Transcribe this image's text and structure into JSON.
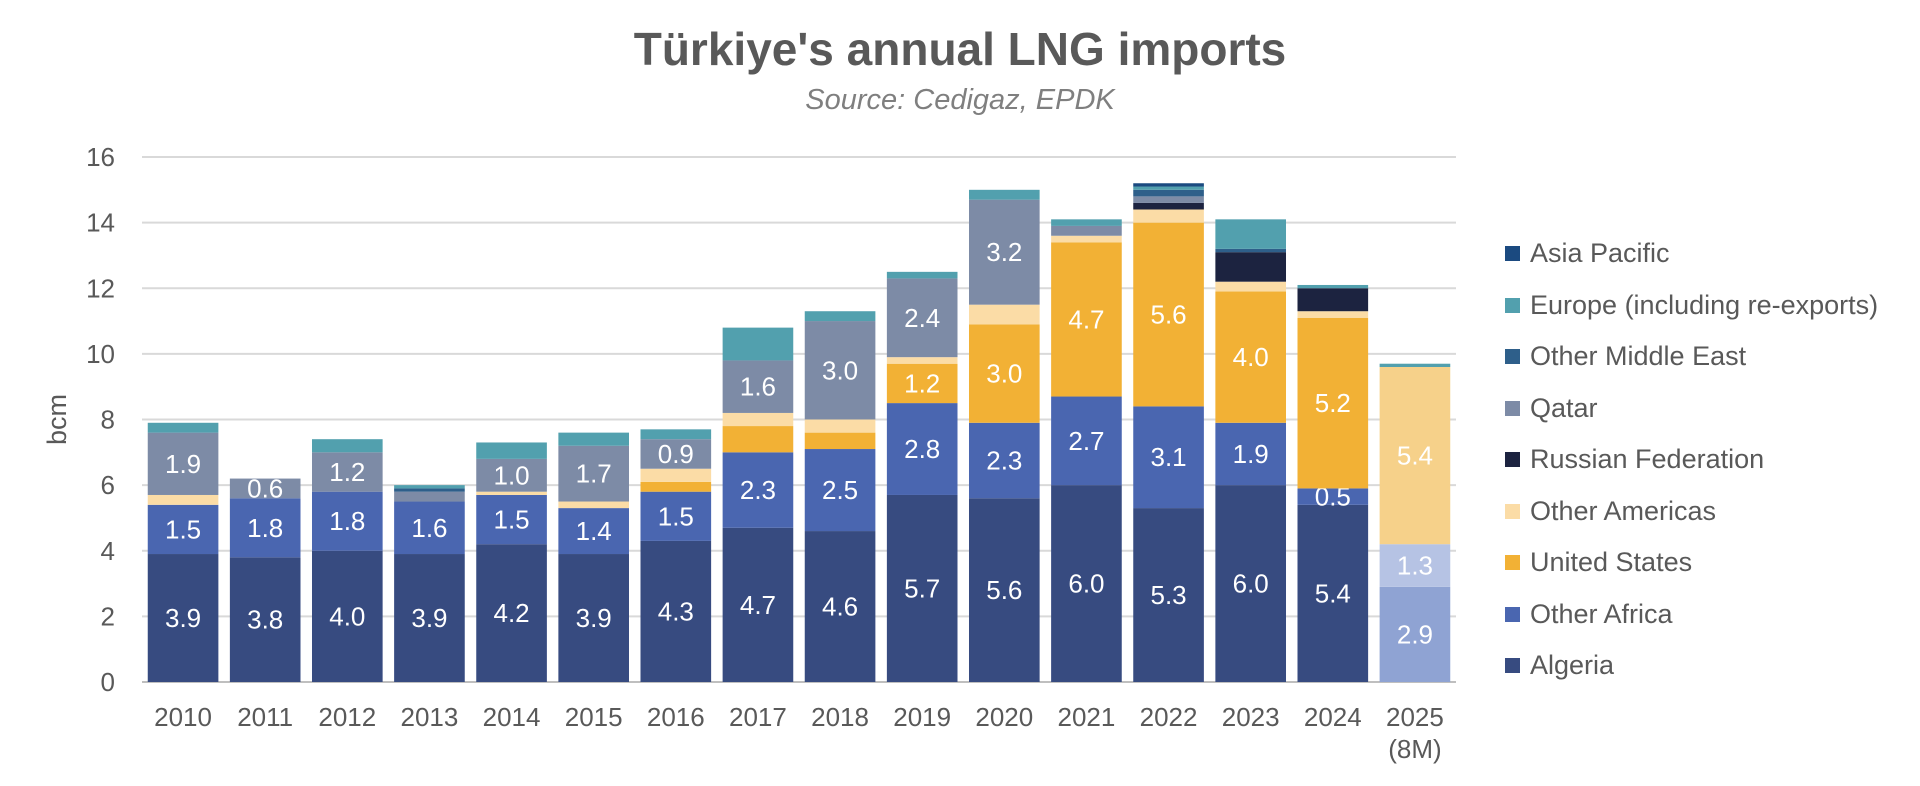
{
  "chart_data": {
    "type": "bar",
    "stacked": true,
    "title": "Türkiye's annual LNG imports",
    "subtitle": "Source: Cedigaz, EPDK",
    "xlabel": "",
    "ylabel": "bcm",
    "ylim": [
      0,
      16
    ],
    "yticks": [
      0,
      2,
      4,
      6,
      8,
      10,
      12,
      14,
      16
    ],
    "grid": true,
    "legend_position": "right",
    "categories": [
      "2010",
      "2011",
      "2012",
      "2013",
      "2014",
      "2015",
      "2016",
      "2017",
      "2018",
      "2019",
      "2020",
      "2021",
      "2022",
      "2023",
      "2024",
      "2025 (8M)"
    ],
    "category_lines": [
      [
        "2010"
      ],
      [
        "2011"
      ],
      [
        "2012"
      ],
      [
        "2013"
      ],
      [
        "2014"
      ],
      [
        "2015"
      ],
      [
        "2016"
      ],
      [
        "2017"
      ],
      [
        "2018"
      ],
      [
        "2019"
      ],
      [
        "2020"
      ],
      [
        "2021"
      ],
      [
        "2022"
      ],
      [
        "2023"
      ],
      [
        "2024"
      ],
      [
        "2025",
        "(8M)"
      ]
    ],
    "series": [
      {
        "name": "Algeria",
        "color": "#374b80",
        "values": [
          3.9,
          3.8,
          4.0,
          3.9,
          4.2,
          3.9,
          4.3,
          4.7,
          4.6,
          5.7,
          5.6,
          6.0,
          5.3,
          6.0,
          5.4,
          2.9
        ],
        "labeled": [
          true,
          true,
          true,
          true,
          true,
          true,
          true,
          true,
          true,
          true,
          true,
          true,
          true,
          true,
          true,
          true
        ]
      },
      {
        "name": "Other Africa",
        "color": "#4a66b0",
        "values": [
          1.5,
          1.8,
          1.8,
          1.6,
          1.5,
          1.4,
          1.5,
          2.3,
          2.5,
          2.8,
          2.3,
          2.7,
          3.1,
          1.9,
          0.5,
          1.3
        ],
        "labeled": [
          true,
          true,
          true,
          true,
          true,
          true,
          true,
          true,
          true,
          true,
          true,
          true,
          true,
          true,
          true,
          true
        ]
      },
      {
        "name": "United States",
        "color": "#f2b135",
        "values": [
          0,
          0,
          0,
          0,
          0,
          0,
          0.3,
          0.8,
          0.5,
          1.2,
          3.0,
          4.7,
          5.6,
          4.0,
          5.2,
          0
        ],
        "labeled": [
          false,
          false,
          false,
          false,
          false,
          false,
          false,
          false,
          false,
          true,
          true,
          true,
          true,
          true,
          true,
          false
        ]
      },
      {
        "name": "Other Americas",
        "color": "#fbdca6",
        "values": [
          0.3,
          0,
          0,
          0,
          0.1,
          0.2,
          0.4,
          0.4,
          0.4,
          0.2,
          0.6,
          0.2,
          0.4,
          0.3,
          0.2,
          5.4
        ],
        "labeled": [
          false,
          false,
          false,
          false,
          false,
          false,
          false,
          false,
          false,
          false,
          false,
          false,
          false,
          false,
          false,
          true
        ]
      },
      {
        "name": "Russian Federation",
        "color": "#1c2340",
        "values": [
          0,
          0,
          0,
          0,
          0,
          0,
          0,
          0,
          0,
          0,
          0,
          0,
          0.2,
          0.9,
          0.7,
          0
        ],
        "labeled": [
          false,
          false,
          false,
          false,
          false,
          false,
          false,
          false,
          false,
          false,
          false,
          false,
          false,
          false,
          false,
          false
        ]
      },
      {
        "name": "Qatar",
        "color": "#7d8ba6",
        "values": [
          1.9,
          0.6,
          1.2,
          0.3,
          1.0,
          1.7,
          0.9,
          1.6,
          3.0,
          2.4,
          3.2,
          0.3,
          0.2,
          0,
          0,
          0
        ],
        "labeled": [
          true,
          true,
          true,
          false,
          true,
          true,
          true,
          true,
          true,
          true,
          true,
          false,
          false,
          false,
          false,
          false
        ]
      },
      {
        "name": "Other Middle East",
        "color": "#2e5f8a",
        "values": [
          0,
          0,
          0,
          0.1,
          0,
          0,
          0,
          0,
          0,
          0,
          0,
          0,
          0.2,
          0.1,
          0,
          0
        ],
        "labeled": [
          false,
          false,
          false,
          false,
          false,
          false,
          false,
          false,
          false,
          false,
          false,
          false,
          false,
          false,
          false,
          false
        ]
      },
      {
        "name": "Europe (including re-exports)",
        "color": "#52a0ae",
        "values": [
          0.3,
          0,
          0.4,
          0.1,
          0.5,
          0.4,
          0.3,
          1.0,
          0.3,
          0.2,
          0.3,
          0.2,
          0.1,
          0.9,
          0.1,
          0.1
        ],
        "labeled": [
          false,
          false,
          false,
          false,
          false,
          false,
          false,
          false,
          false,
          false,
          false,
          false,
          false,
          false,
          false,
          false
        ]
      },
      {
        "name": "Asia Pacific",
        "color": "#1b4a80",
        "values": [
          0,
          0,
          0,
          0,
          0,
          0,
          0,
          0,
          0,
          0,
          0,
          0,
          0.1,
          0,
          0,
          0
        ],
        "labeled": [
          false,
          false,
          false,
          false,
          false,
          false,
          false,
          false,
          false,
          false,
          false,
          false,
          false,
          false,
          false,
          false
        ]
      }
    ],
    "overrides_2025": {
      "note": "2025 (8M) bar uses lighter shades",
      "colors": {
        "Algeria": "#8fa3d3",
        "Other Africa": "#b6c3e4",
        "Other Americas": "#f6d18a",
        "Europe (including re-exports)": "#52a0ae"
      }
    },
    "legend_order": [
      "Asia Pacific",
      "Europe (including re-exports)",
      "Other Middle East",
      "Qatar",
      "Russian Federation",
      "Other Americas",
      "United States",
      "Other Africa",
      "Algeria"
    ]
  }
}
